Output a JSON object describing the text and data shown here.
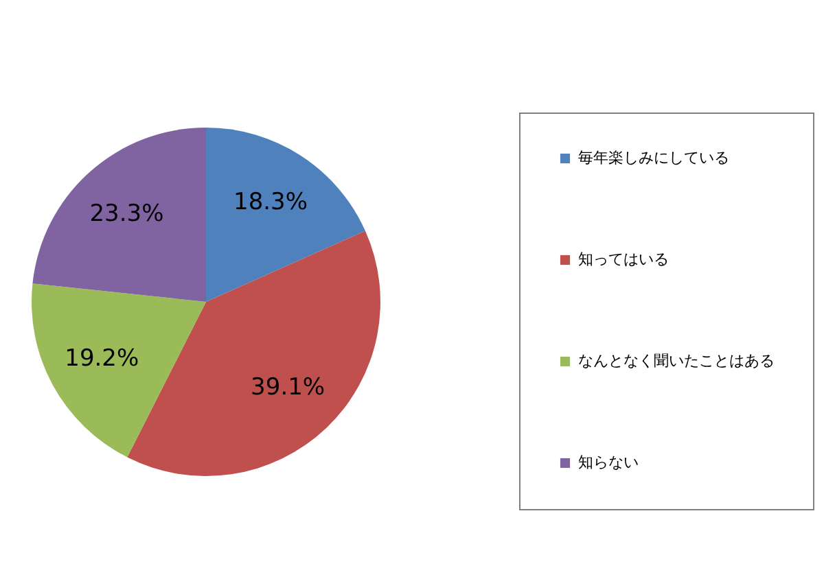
{
  "chart_data": {
    "type": "pie",
    "categories": [
      "毎年楽しみにしている",
      "知ってはいる",
      "なんとなく聞いたことはある",
      "知らない"
    ],
    "values": [
      18.3,
      39.1,
      19.2,
      23.3
    ],
    "value_labels": [
      "18.3%",
      "39.1%",
      "19.2%",
      "23.3%"
    ],
    "colors": [
      "#4f81bd",
      "#c0504d",
      "#9bbb59",
      "#8064a2"
    ],
    "legend": "right"
  }
}
